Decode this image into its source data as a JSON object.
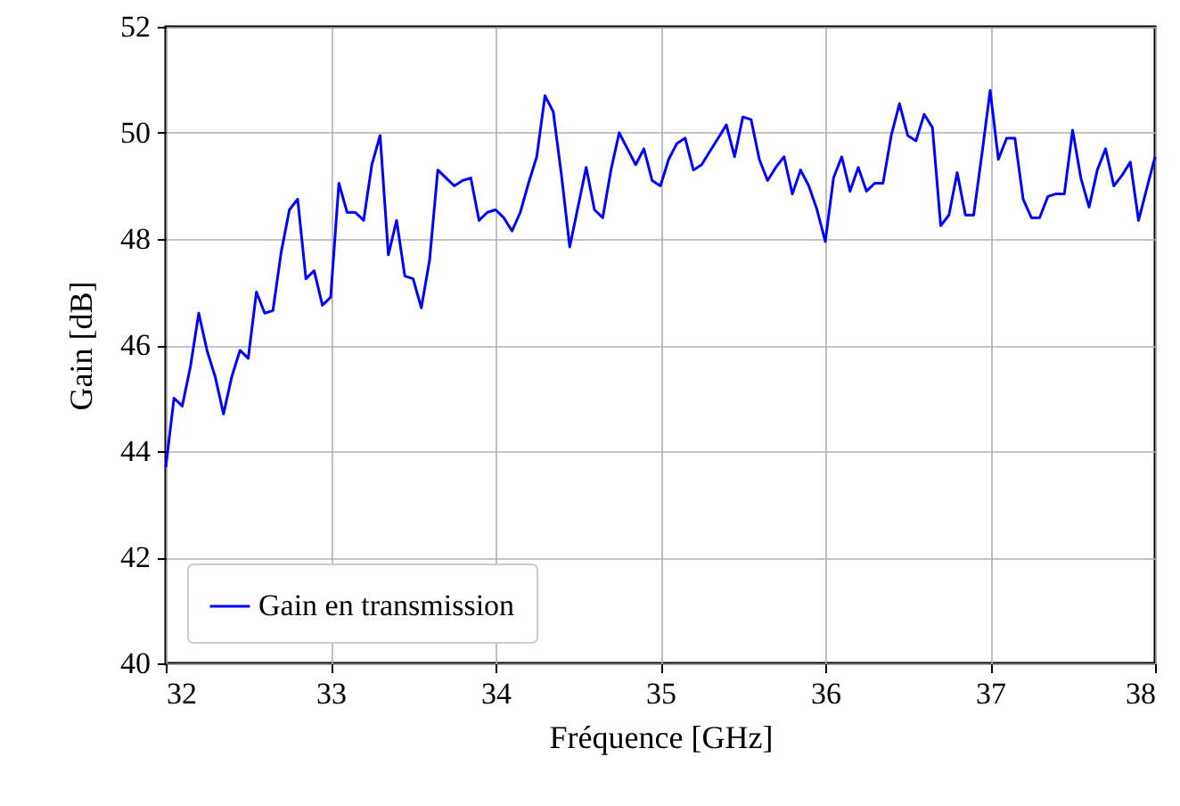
{
  "chart_data": {
    "type": "line",
    "xlabel": "Fréquence [GHz]",
    "ylabel": "Gain [dB]",
    "xlim": [
      32,
      38
    ],
    "xticks": [
      32,
      33,
      34,
      35,
      36,
      37,
      38
    ],
    "ylim": [
      40,
      52
    ],
    "yticks": [
      40,
      42,
      44,
      46,
      48,
      50,
      52
    ],
    "grid": true,
    "legend": "bottom left",
    "line_style": "solid",
    "x": [
      32.0,
      32.05,
      32.1,
      32.15,
      32.2,
      32.25,
      32.3,
      32.35,
      32.4,
      32.45,
      32.5,
      32.55,
      32.6,
      32.65,
      32.7,
      32.75,
      32.8,
      32.85,
      32.9,
      32.95,
      33.0,
      33.05,
      33.1,
      33.15,
      33.2,
      33.25,
      33.3,
      33.35,
      33.4,
      33.45,
      33.5,
      33.55,
      33.6,
      33.65,
      33.7,
      33.75,
      33.8,
      33.85,
      33.9,
      33.95,
      34.0,
      34.05,
      34.1,
      34.15,
      34.2,
      34.25,
      34.3,
      34.35,
      34.4,
      34.45,
      34.5,
      34.55,
      34.6,
      34.65,
      34.7,
      34.75,
      34.8,
      34.85,
      34.9,
      34.95,
      35.0,
      35.05,
      35.1,
      35.15,
      35.2,
      35.25,
      35.3,
      35.35,
      35.4,
      35.45,
      35.5,
      35.55,
      35.6,
      35.65,
      35.7,
      35.75,
      35.8,
      35.85,
      35.9,
      35.95,
      36.0,
      36.05,
      36.1,
      36.15,
      36.2,
      36.25,
      36.3,
      36.35,
      36.4,
      36.45,
      36.5,
      36.55,
      36.6,
      36.65,
      36.7,
      36.75,
      36.8,
      36.85,
      36.9,
      36.95,
      37.0,
      37.05,
      37.1,
      37.15,
      37.2,
      37.25,
      37.3,
      37.35,
      37.4,
      37.45,
      37.5,
      37.55,
      37.6,
      37.65,
      37.7,
      37.75,
      37.8,
      37.85,
      37.9,
      37.95,
      38.0
    ],
    "series": [
      {
        "name": "Gain en transmission",
        "color": "#0000ff",
        "values": [
          43.7,
          45.0,
          44.85,
          45.6,
          46.6,
          45.9,
          45.4,
          44.7,
          45.4,
          45.9,
          45.75,
          47.0,
          46.6,
          46.65,
          47.75,
          48.55,
          48.75,
          47.25,
          47.4,
          46.75,
          46.9,
          49.05,
          48.5,
          48.5,
          48.35,
          49.4,
          49.95,
          47.7,
          48.35,
          47.3,
          47.25,
          46.7,
          47.6,
          49.3,
          49.15,
          49.0,
          49.1,
          49.15,
          48.35,
          48.5,
          48.55,
          48.4,
          48.15,
          48.5,
          49.05,
          49.55,
          50.7,
          50.4,
          49.2,
          47.85,
          48.6,
          49.35,
          48.55,
          48.4,
          49.3,
          50.0,
          49.7,
          49.4,
          49.7,
          49.1,
          49.0,
          49.5,
          49.8,
          49.9,
          49.3,
          49.4,
          49.65,
          49.9,
          50.15,
          49.55,
          50.3,
          50.25,
          49.5,
          49.1,
          49.35,
          49.55,
          48.85,
          49.3,
          49.0,
          48.55,
          47.95,
          49.15,
          49.55,
          48.9,
          49.35,
          48.9,
          49.05,
          49.05,
          49.95,
          50.55,
          49.95,
          49.85,
          50.35,
          50.1,
          48.25,
          48.45,
          49.25,
          48.45,
          48.45,
          49.6,
          50.8,
          49.5,
          49.9,
          49.9,
          48.75,
          48.4,
          48.4,
          48.8,
          48.85,
          48.85,
          50.05,
          49.15,
          48.6,
          49.3,
          49.7,
          49.0,
          49.2,
          49.45,
          48.35,
          48.95,
          49.55
        ]
      }
    ]
  }
}
